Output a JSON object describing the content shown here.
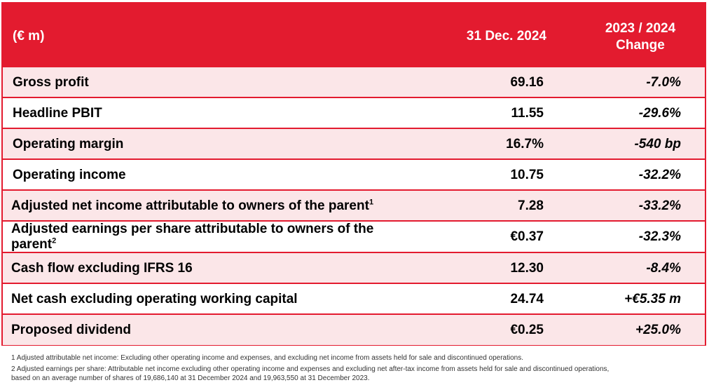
{
  "header": {
    "label": "(€ m)",
    "value": "31 Dec. 2024",
    "change_line1": "2023 / 2024",
    "change_line2": "Change"
  },
  "rows": [
    {
      "label": "Gross profit",
      "sup": "",
      "value": "69.16",
      "change": "-7.0%"
    },
    {
      "label": "Headline PBIT",
      "sup": "",
      "value": "11.55",
      "change": "-29.6%"
    },
    {
      "label": "Operating margin",
      "sup": "",
      "value": "16.7%",
      "change": "-540 bp"
    },
    {
      "label": "Operating income",
      "sup": "",
      "value": "10.75",
      "change": "-32.2%"
    },
    {
      "label": "Adjusted net income attributable to owners of the parent",
      "sup": "1",
      "value": "7.28",
      "change": "-33.2%"
    },
    {
      "label_line1": "Adjusted earnings per share attributable to owners of the",
      "label_line2": "parent",
      "sup": "2",
      "value": "€0.37",
      "change": "-32.3%"
    },
    {
      "label": "Cash flow excluding IFRS 16",
      "sup": "",
      "value": "12.30",
      "change": "-8.4%"
    },
    {
      "label": "Net cash excluding operating working capital",
      "sup": "",
      "value": "24.74",
      "change": "+€5.35 m"
    },
    {
      "label": "Proposed dividend",
      "sup": "",
      "value": "€0.25",
      "change": "+25.0%"
    }
  ],
  "footnotes": {
    "note1": "1 Adjusted attributable net income: Excluding other operating income and expenses, and excluding net income from assets held for sale and discontinued operations.",
    "note2_line1": "2 Adjusted earnings per share: Attributable net income excluding other operating income and expenses and excluding net after-tax income from assets held for sale and discontinued operations,",
    "note2_line2": "based on an average number of shares of 19,686,140 at 31 December 2024 and 19,963,550 at 31 December 2023."
  },
  "colors": {
    "accent": "#e31b2f",
    "row_shade": "#fbe6e8"
  }
}
